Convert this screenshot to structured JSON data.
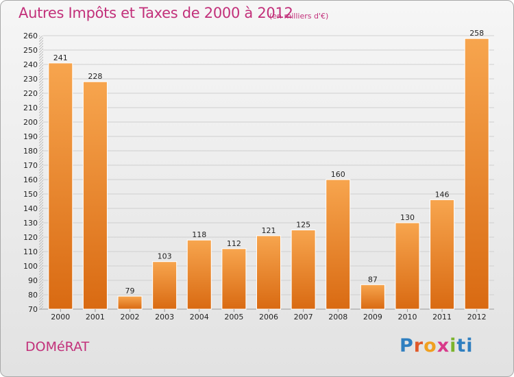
{
  "header": {
    "title": "Autres Impôts et Taxes de 2000 à 2012",
    "subtitle": "(en milliers d'€)"
  },
  "footer": {
    "town": "DOMéRAT",
    "logo": "Proxiti"
  },
  "colors": {
    "title": "#c2307a",
    "bar_top": "#f7a54e",
    "bar_bottom": "#d96a12",
    "grid": "#cfcfcf"
  },
  "chart_data": {
    "type": "bar",
    "title": "Autres Impôts et Taxes de 2000 à 2012",
    "subtitle": "(en milliers d'€)",
    "xlabel": "",
    "ylabel": "",
    "categories": [
      "2000",
      "2001",
      "2002",
      "2003",
      "2004",
      "2005",
      "2006",
      "2007",
      "2008",
      "2009",
      "2010",
      "2011",
      "2012"
    ],
    "values": [
      241,
      228,
      79,
      103,
      118,
      112,
      121,
      125,
      160,
      87,
      130,
      146,
      258
    ],
    "ylim": [
      70,
      260
    ],
    "ytick_step": 10,
    "grid": true,
    "data_labels": true
  }
}
